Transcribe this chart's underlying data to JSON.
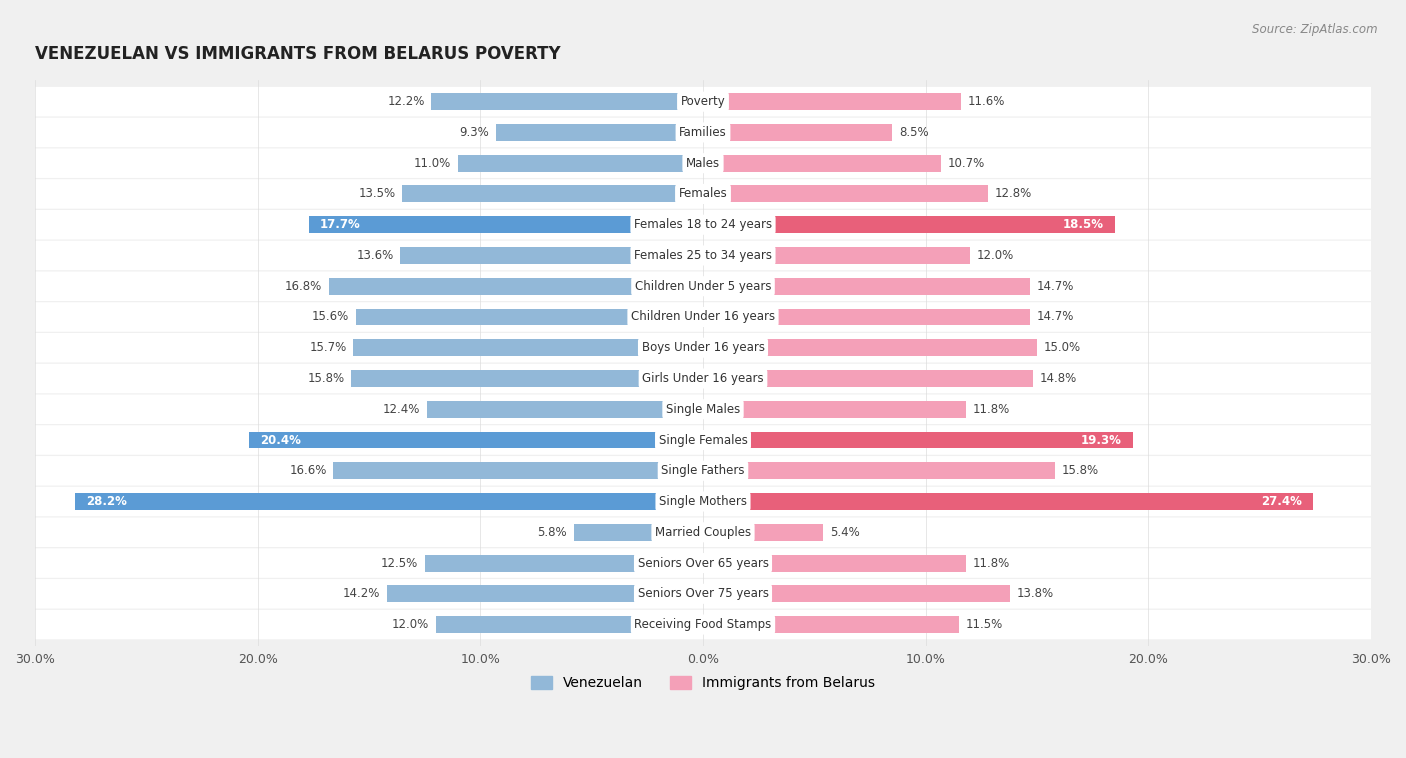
{
  "title": "VENEZUELAN VS IMMIGRANTS FROM BELARUS POVERTY",
  "source": "Source: ZipAtlas.com",
  "categories": [
    "Poverty",
    "Families",
    "Males",
    "Females",
    "Females 18 to 24 years",
    "Females 25 to 34 years",
    "Children Under 5 years",
    "Children Under 16 years",
    "Boys Under 16 years",
    "Girls Under 16 years",
    "Single Males",
    "Single Females",
    "Single Fathers",
    "Single Mothers",
    "Married Couples",
    "Seniors Over 65 years",
    "Seniors Over 75 years",
    "Receiving Food Stamps"
  ],
  "venezuelan": [
    12.2,
    9.3,
    11.0,
    13.5,
    17.7,
    13.6,
    16.8,
    15.6,
    15.7,
    15.8,
    12.4,
    20.4,
    16.6,
    28.2,
    5.8,
    12.5,
    14.2,
    12.0
  ],
  "belarus": [
    11.6,
    8.5,
    10.7,
    12.8,
    18.5,
    12.0,
    14.7,
    14.7,
    15.0,
    14.8,
    11.8,
    19.3,
    15.8,
    27.4,
    5.4,
    11.8,
    13.8,
    11.5
  ],
  "venezuelan_color": "#92b8d8",
  "belarus_color": "#f4a0b8",
  "venezuelan_highlight": "#5b9bd5",
  "belarus_highlight": "#e8607a",
  "highlight_categories": [
    "Females 18 to 24 years",
    "Single Females",
    "Single Mothers"
  ],
  "axis_limit": 30.0,
  "background_color": "#f0f0f0",
  "row_bg_color": "#ffffff",
  "row_sep_color": "#e0e0e0",
  "bar_height": 0.55,
  "label_fontsize": 8.5,
  "value_fontsize": 8.5,
  "category_label_bg": "#ffffff",
  "category_label_color": "#333333"
}
